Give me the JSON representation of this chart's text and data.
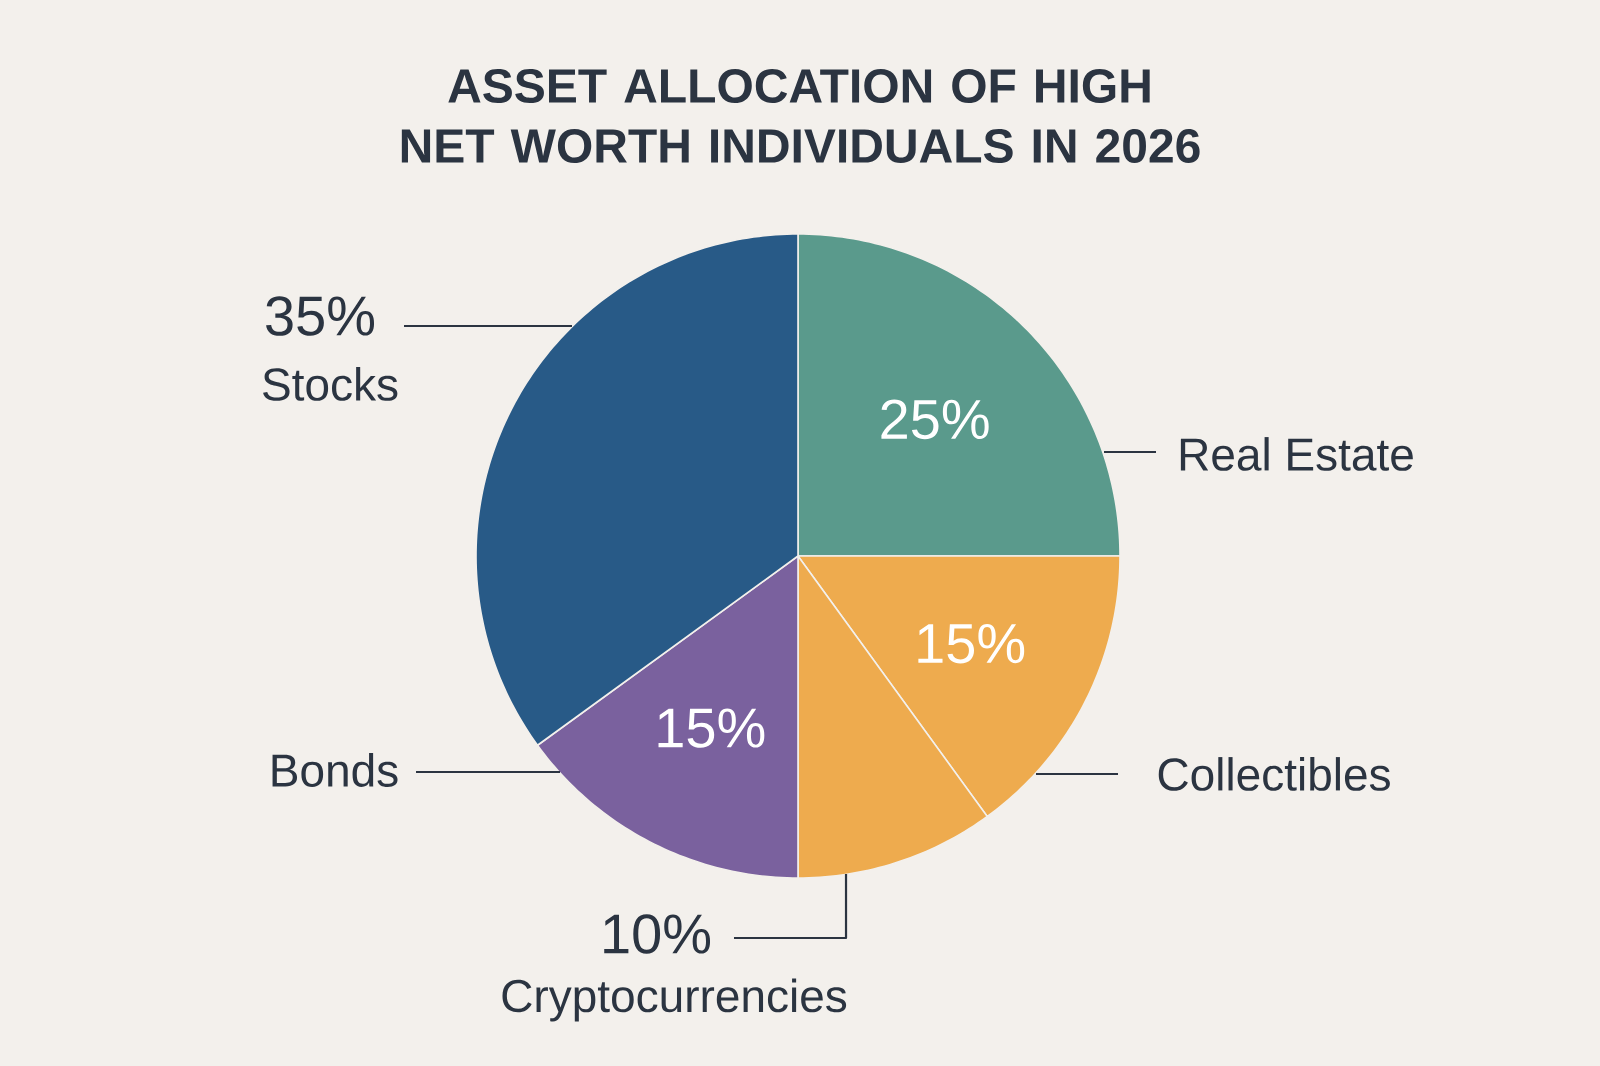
{
  "chart_data": {
    "type": "pie",
    "title": "ASSET ALLOCATION OF HIGH NET WORTH INDIVIDUALS IN 2026",
    "categories": [
      "Real Estate",
      "Collectibles",
      "Cryptocurrencies",
      "Bonds",
      "Stocks"
    ],
    "values": [
      25,
      15,
      10,
      15,
      35
    ],
    "value_labels": [
      "25%",
      "15%",
      "10%",
      "15%",
      "35%"
    ],
    "colors": [
      "#5a9a8c",
      "#eeab4e",
      "#eeab4e",
      "#7a619e",
      "#285a87"
    ]
  }
}
